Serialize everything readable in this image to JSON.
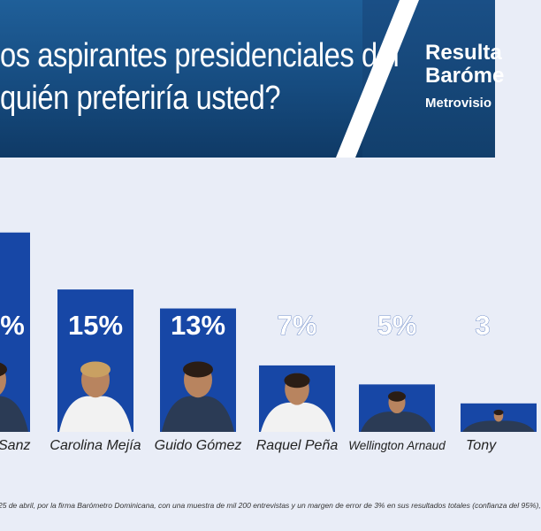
{
  "header": {
    "question_line1": "os aspirantes presidenciales del",
    "question_line2": "quién preferiría usted?",
    "results_label": "Resulta",
    "barometer_label": "Baróme",
    "source_label": "Metrovisio"
  },
  "chart_data": {
    "type": "bar",
    "categories": [
      "Sanz",
      "Carolina Mejía",
      "Guido Gómez",
      "Raquel Peña",
      "Wellington Arnaud",
      "Tony"
    ],
    "value_labels": [
      "%",
      "15%",
      "13%",
      "7%",
      "5%",
      "3"
    ],
    "values": [
      21,
      15,
      13,
      7,
      5,
      3
    ],
    "ylim": [
      0,
      22
    ]
  },
  "footnote": "25 de abril, por la firma Barómetro Dominicana, con una muestra de mil 200 entrevistas y un margen de error de 3% en sus resultados totales (confianza del 95%),",
  "colors": {
    "bar": "#1747a6",
    "header": "#164b7f",
    "background": "#e9edf7"
  }
}
